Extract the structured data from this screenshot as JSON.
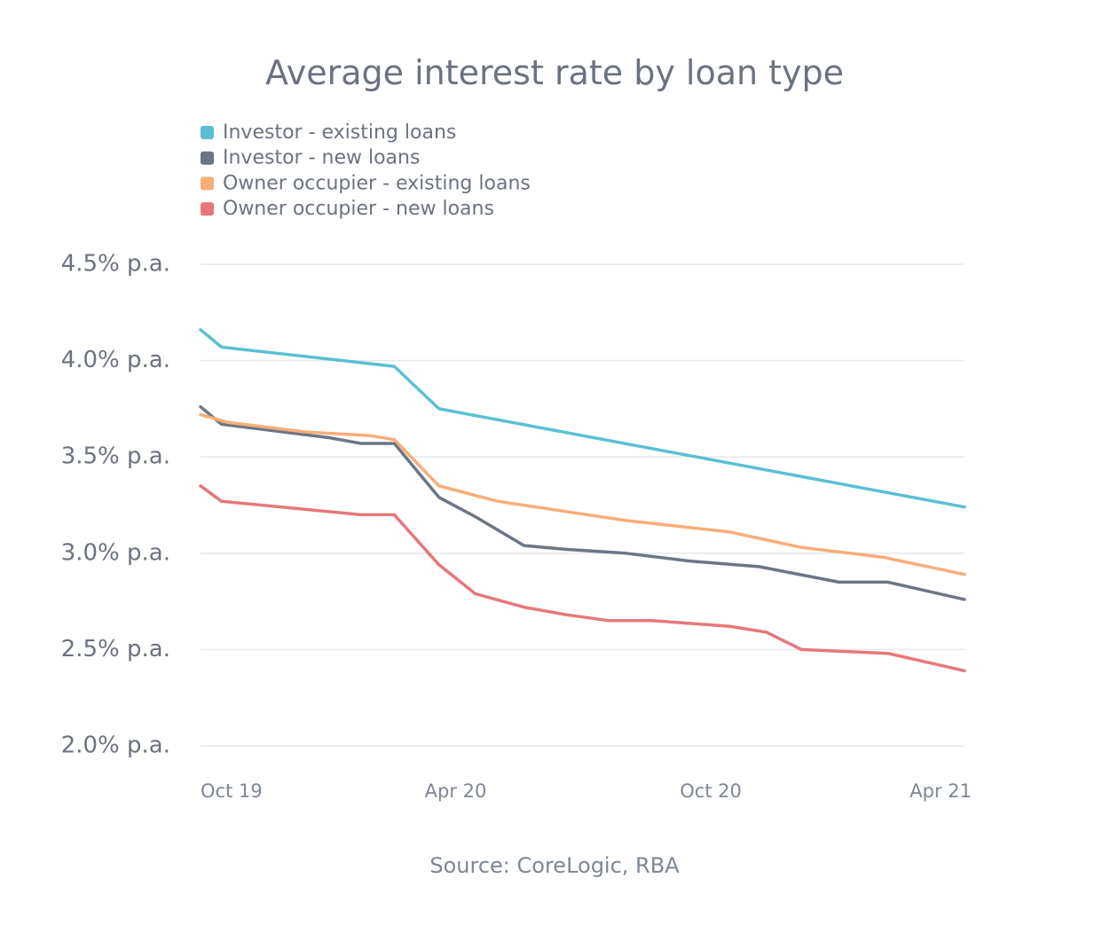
{
  "chart_data": {
    "type": "line",
    "title": "Average interest rate by loan type",
    "source": "Source: CoreLogic, RBA",
    "ylim": [
      2.0,
      4.5
    ],
    "yticks": [
      {
        "value": 4.5,
        "label": "4.5% p.a."
      },
      {
        "value": 4.0,
        "label": "4.0% p.a."
      },
      {
        "value": 3.5,
        "label": "3.5% p.a."
      },
      {
        "value": 3.0,
        "label": "3.0% p.a."
      },
      {
        "value": 2.5,
        "label": "2.5% p.a."
      },
      {
        "value": 2.0,
        "label": "2.0% p.a."
      }
    ],
    "xlim": [
      "2019-10-01",
      "2021-04-01"
    ],
    "xticks": [
      {
        "value": "2019-10-01",
        "label": "Oct 19"
      },
      {
        "value": "2020-04-01",
        "label": "Apr 20"
      },
      {
        "value": "2020-10-01",
        "label": "Oct 20"
      },
      {
        "value": "2021-04-01",
        "label": "Apr 21"
      }
    ],
    "grid": true,
    "legend_position": "top-left",
    "series": [
      {
        "name": "Investor - existing loans",
        "color": "#5bbfd3",
        "points": [
          {
            "x": "2019-10-01",
            "y": 4.16
          },
          {
            "x": "2019-10-16",
            "y": 4.07
          },
          {
            "x": "2020-02-17",
            "y": 3.97
          },
          {
            "x": "2020-03-20",
            "y": 3.75
          },
          {
            "x": "2021-04-01",
            "y": 3.24
          }
        ]
      },
      {
        "name": "Investor - new loans",
        "color": "#6b7685",
        "points": [
          {
            "x": "2019-10-01",
            "y": 3.76
          },
          {
            "x": "2019-10-16",
            "y": 3.67
          },
          {
            "x": "2020-01-01",
            "y": 3.6
          },
          {
            "x": "2020-01-24",
            "y": 3.57
          },
          {
            "x": "2020-02-17",
            "y": 3.57
          },
          {
            "x": "2020-03-20",
            "y": 3.29
          },
          {
            "x": "2020-04-15",
            "y": 3.19
          },
          {
            "x": "2020-05-20",
            "y": 3.04
          },
          {
            "x": "2020-06-20",
            "y": 3.02
          },
          {
            "x": "2020-08-01",
            "y": 3.0
          },
          {
            "x": "2020-09-15",
            "y": 2.96
          },
          {
            "x": "2020-11-05",
            "y": 2.93
          },
          {
            "x": "2021-01-01",
            "y": 2.85
          },
          {
            "x": "2021-02-05",
            "y": 2.85
          },
          {
            "x": "2021-04-01",
            "y": 2.76
          }
        ]
      },
      {
        "name": "Owner occupier - existing loans",
        "color": "#f7ad78",
        "points": [
          {
            "x": "2019-10-01",
            "y": 3.72
          },
          {
            "x": "2019-10-20",
            "y": 3.68
          },
          {
            "x": "2019-12-15",
            "y": 3.63
          },
          {
            "x": "2020-01-31",
            "y": 3.61
          },
          {
            "x": "2020-02-17",
            "y": 3.59
          },
          {
            "x": "2020-03-20",
            "y": 3.35
          },
          {
            "x": "2020-05-01",
            "y": 3.27
          },
          {
            "x": "2020-08-01",
            "y": 3.17
          },
          {
            "x": "2020-10-15",
            "y": 3.11
          },
          {
            "x": "2020-12-05",
            "y": 3.03
          },
          {
            "x": "2021-02-01",
            "y": 2.98
          },
          {
            "x": "2021-04-01",
            "y": 2.89
          }
        ]
      },
      {
        "name": "Owner occupier - new loans",
        "color": "#e5777a",
        "points": [
          {
            "x": "2019-10-01",
            "y": 3.35
          },
          {
            "x": "2019-10-16",
            "y": 3.27
          },
          {
            "x": "2020-01-24",
            "y": 3.2
          },
          {
            "x": "2020-02-17",
            "y": 3.2
          },
          {
            "x": "2020-03-20",
            "y": 2.94
          },
          {
            "x": "2020-04-15",
            "y": 2.79
          },
          {
            "x": "2020-05-20",
            "y": 2.72
          },
          {
            "x": "2020-06-20",
            "y": 2.68
          },
          {
            "x": "2020-07-20",
            "y": 2.65
          },
          {
            "x": "2020-08-20",
            "y": 2.65
          },
          {
            "x": "2020-10-15",
            "y": 2.62
          },
          {
            "x": "2020-11-10",
            "y": 2.59
          },
          {
            "x": "2020-12-05",
            "y": 2.5
          },
          {
            "x": "2021-02-05",
            "y": 2.48
          },
          {
            "x": "2021-04-01",
            "y": 2.39
          }
        ]
      }
    ]
  }
}
